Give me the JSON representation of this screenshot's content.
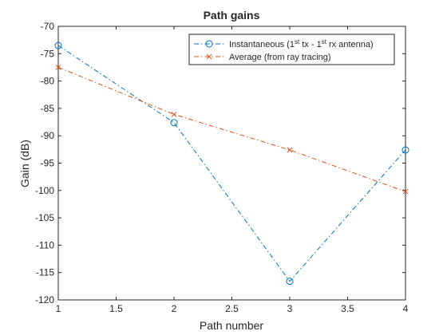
{
  "chart_data": {
    "type": "line",
    "title": "Path gains",
    "xlabel": "Path number",
    "ylabel": "Gain (dB)",
    "xlim": [
      1,
      4
    ],
    "ylim": [
      -120,
      -70
    ],
    "x_ticks": [
      "1",
      "1.5",
      "2",
      "2.5",
      "3",
      "3.5",
      "4"
    ],
    "y_ticks": [
      "-70",
      "-75",
      "-80",
      "-85",
      "-90",
      "-95",
      "-100",
      "-105",
      "-110",
      "-115",
      "-120"
    ],
    "x": [
      1,
      2,
      3,
      4
    ],
    "series": [
      {
        "name": "Instantaneous (1st tx - 1st rx antenna)",
        "name_parts": [
          "Instantaneous (1",
          "st",
          " tx - 1",
          "st",
          " rx antenna)"
        ],
        "values": [
          -73.5,
          -87.6,
          -116.6,
          -92.6
        ],
        "color": "#0072BD",
        "marker": "circle",
        "line_style": "dash-dot"
      },
      {
        "name": "Average (from ray tracing)",
        "values": [
          -77.5,
          -86.1,
          -92.6,
          -100.2
        ],
        "color": "#D95319",
        "marker": "x",
        "line_style": "dash-dot"
      }
    ],
    "grid": false,
    "legend_position": "top-right"
  }
}
